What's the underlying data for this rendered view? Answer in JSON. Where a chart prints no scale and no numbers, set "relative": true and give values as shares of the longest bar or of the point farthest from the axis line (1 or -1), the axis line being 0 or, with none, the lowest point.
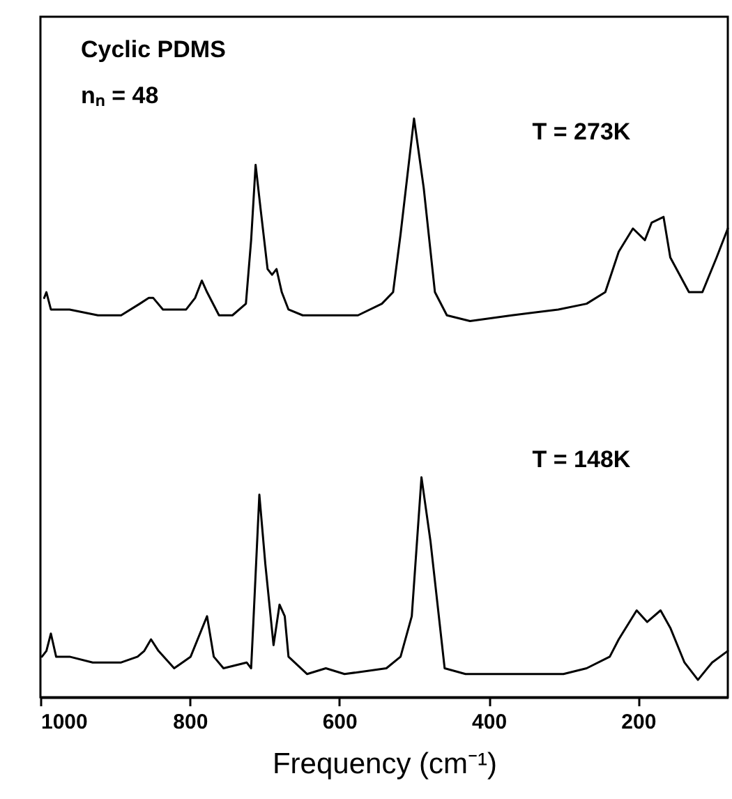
{
  "chart_data": {
    "type": "line",
    "relative": true,
    "xlabel": "Frequency (cm⁻¹)",
    "xlim": [
      1000,
      80
    ],
    "xticks": [
      1000,
      800,
      600,
      400,
      200
    ],
    "annotations": [
      "Cyclic PDMS",
      "nₙ = 48",
      "T = 273K",
      "T = 148K"
    ],
    "series": [
      {
        "color": "#000000",
        "x": [
          995,
          992,
          986,
          961,
          923,
          892,
          867,
          855,
          849,
          836,
          805,
          793,
          784,
          777,
          761,
          743,
          725,
          718,
          712,
          705,
          696,
          690,
          684,
          677,
          668,
          649,
          575,
          543,
          528,
          518,
          500,
          487,
          472,
          456,
          425,
          369,
          307,
          269,
          244,
          226,
          207,
          191,
          182,
          166,
          157,
          132,
          114,
          95,
          80
        ],
        "values": [
          0.69,
          0.7,
          0.67,
          0.67,
          0.66,
          0.66,
          0.68,
          0.69,
          0.69,
          0.67,
          0.67,
          0.69,
          0.72,
          0.7,
          0.66,
          0.66,
          0.68,
          0.79,
          0.92,
          0.84,
          0.74,
          0.73,
          0.74,
          0.7,
          0.67,
          0.66,
          0.66,
          0.68,
          0.7,
          0.8,
          1.0,
          0.88,
          0.7,
          0.66,
          0.65,
          0.66,
          0.67,
          0.68,
          0.7,
          0.77,
          0.81,
          0.79,
          0.82,
          0.83,
          0.76,
          0.7,
          0.7,
          0.76,
          0.81
        ]
      },
      {
        "color": "#000000",
        "x": [
          998,
          992,
          986,
          979,
          961,
          930,
          892,
          870,
          861,
          852,
          842,
          821,
          799,
          777,
          768,
          755,
          724,
          718,
          715,
          707,
          699,
          688,
          680,
          673,
          668,
          643,
          618,
          593,
          537,
          518,
          503,
          490,
          478,
          459,
          431,
          369,
          300,
          269,
          238,
          226,
          202,
          188,
          170,
          157,
          138,
          120,
          101,
          80
        ],
        "values": [
          0.07,
          0.08,
          0.11,
          0.07,
          0.07,
          0.06,
          0.06,
          0.07,
          0.08,
          0.1,
          0.08,
          0.05,
          0.07,
          0.14,
          0.07,
          0.05,
          0.06,
          0.05,
          0.13,
          0.35,
          0.23,
          0.09,
          0.16,
          0.14,
          0.07,
          0.04,
          0.05,
          0.04,
          0.05,
          0.07,
          0.14,
          0.38,
          0.27,
          0.05,
          0.04,
          0.04,
          0.04,
          0.05,
          0.07,
          0.1,
          0.15,
          0.13,
          0.15,
          0.12,
          0.06,
          0.03,
          0.06,
          0.08
        ]
      }
    ]
  }
}
